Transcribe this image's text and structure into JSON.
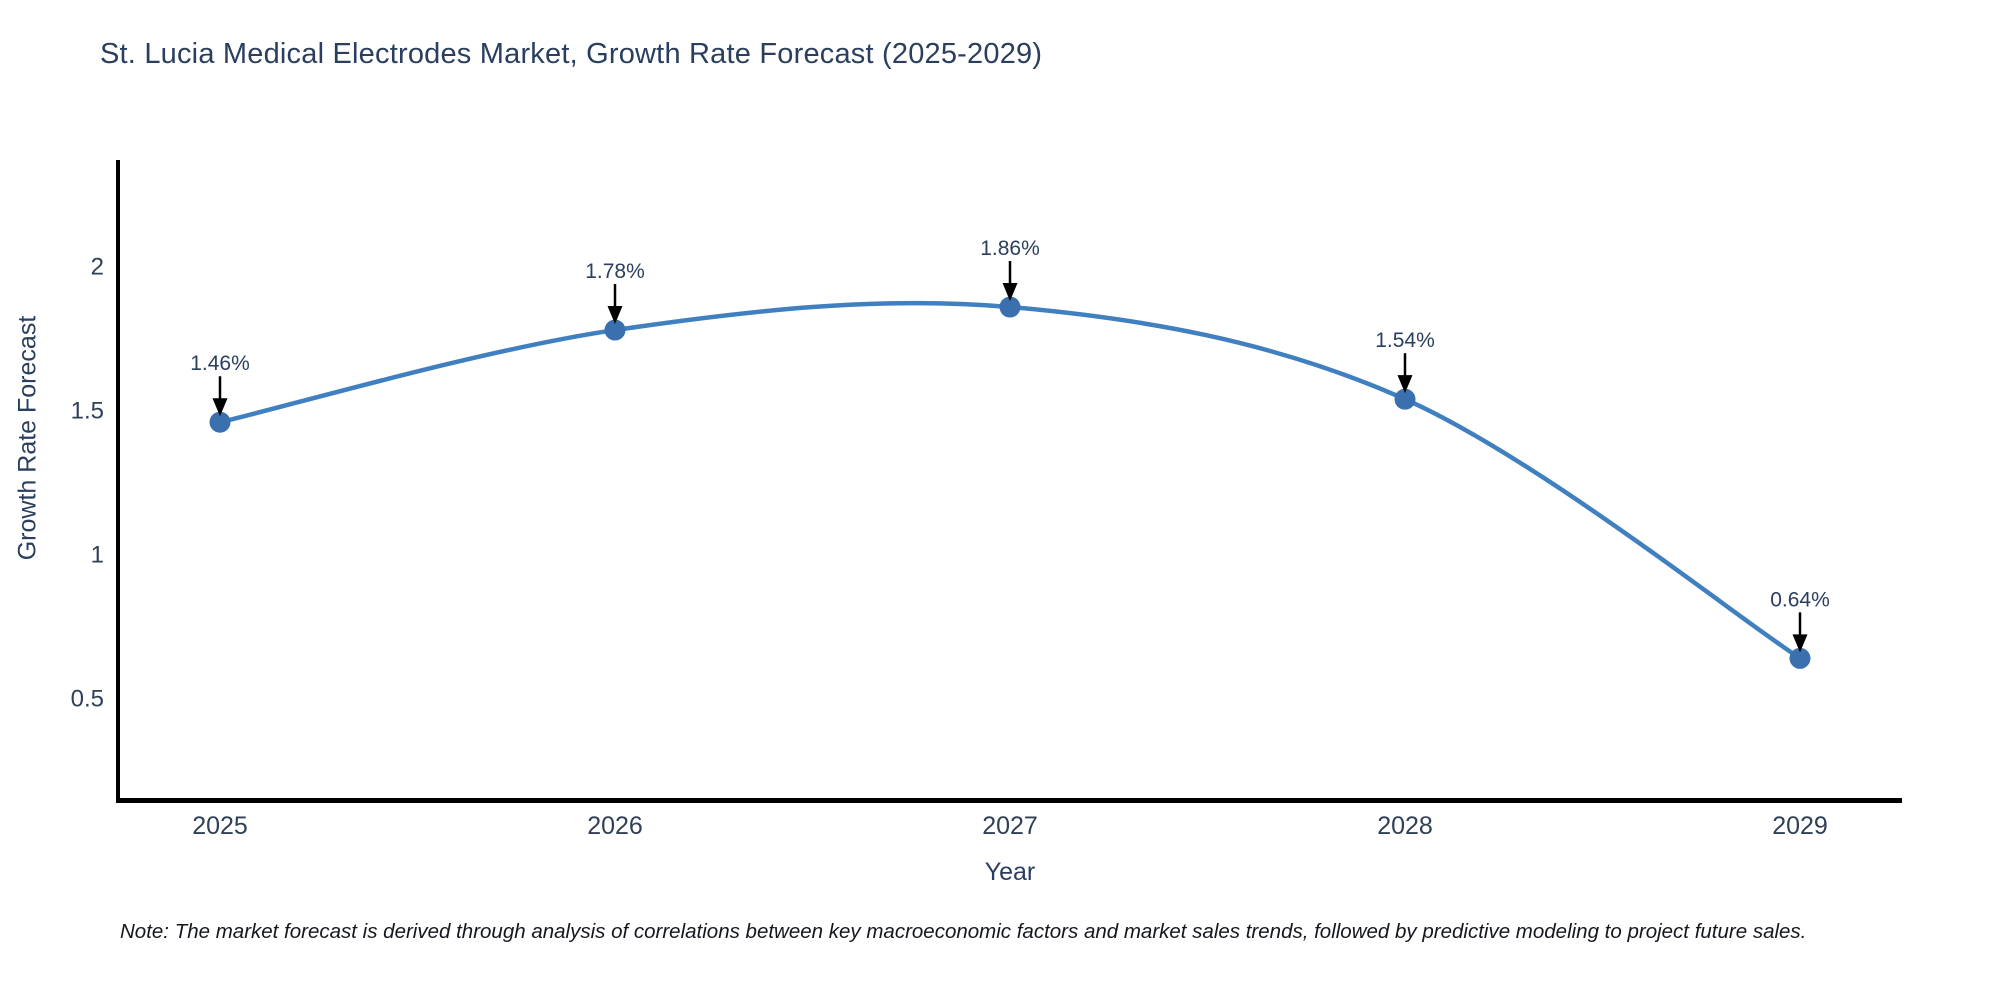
{
  "title": "St. Lucia Medical Electrodes Market, Growth Rate Forecast (2025-2029)",
  "note": "Note: The market forecast is derived through analysis of correlations between key macroeconomic factors and market sales trends, followed by predictive modeling to project future sales.",
  "chart_data": {
    "type": "line",
    "title": "St. Lucia Medical Electrodes Market, Growth Rate Forecast (2025-2029)",
    "xlabel": "Year",
    "ylabel": "Growth Rate Forecast",
    "x": [
      2025,
      2026,
      2027,
      2028,
      2029
    ],
    "values": [
      1.46,
      1.78,
      1.86,
      1.54,
      0.64
    ],
    "series": [
      {
        "name": "Growth Rate Forecast",
        "values": [
          1.46,
          1.78,
          1.86,
          1.54,
          0.64
        ]
      }
    ],
    "point_labels": [
      "1.46%",
      "1.78%",
      "1.86%",
      "1.54%",
      "0.64%"
    ],
    "xtick_labels": [
      "2025",
      "2026",
      "2027",
      "2028",
      "2029"
    ],
    "ytick_values": [
      0.5,
      1,
      1.5,
      2
    ],
    "ytick_labels": [
      "0.5",
      "1",
      "1.5",
      "2"
    ],
    "ylim": [
      0.15,
      2.37
    ],
    "xlim": [
      2024.67,
      2029.26
    ],
    "grid": false,
    "legend_position": "none",
    "line_shape": "spline",
    "annotations_have_arrows": true,
    "colors": {
      "line": "#4180c0",
      "marker": "#3a70ad",
      "axis": "#000000",
      "title_text": "#2a3f5f",
      "tick_text": "#2f3f56",
      "annotation_text": "#2a3f5f",
      "annotation_arrow": "#000000",
      "note_text": "#15171f",
      "background": "#ffffff"
    }
  }
}
